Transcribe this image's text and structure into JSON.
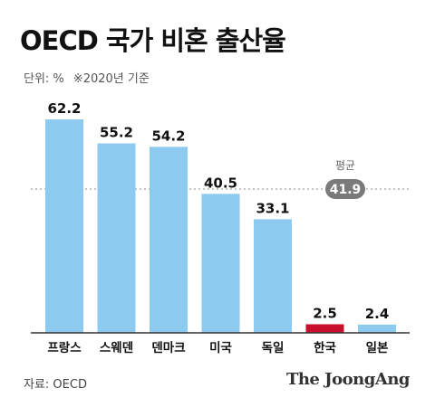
{
  "title": "OECD 국가 비혼 출산율",
  "unit_label": "단위: %",
  "unit_note": "※2020년 기준",
  "source": "자료: OECD",
  "logo": "The JoongAng",
  "colors": {
    "bar": "#8ccaf0",
    "highlight": "#c8102e",
    "average_line": "#888888",
    "average_badge": "#7a7a7a",
    "axis": "#333333"
  },
  "chart_data": {
    "type": "bar",
    "title": "OECD 국가 비혼 출산율",
    "categories": [
      "프랑스",
      "스웨덴",
      "덴마크",
      "미국",
      "독일",
      "한국",
      "일본"
    ],
    "values": [
      62.2,
      55.2,
      54.2,
      40.5,
      33.1,
      2.5,
      2.4
    ],
    "value_labels": [
      "62.2",
      "55.2",
      "54.2",
      "40.5",
      "33.1",
      "2.5",
      "2.4"
    ],
    "highlight_category": "한국",
    "ylim": [
      0,
      62.2
    ],
    "grid": false,
    "reference_line": {
      "label": "평균",
      "value": 41.9,
      "value_label": "41.9"
    },
    "xlabel": "",
    "ylabel": ""
  }
}
